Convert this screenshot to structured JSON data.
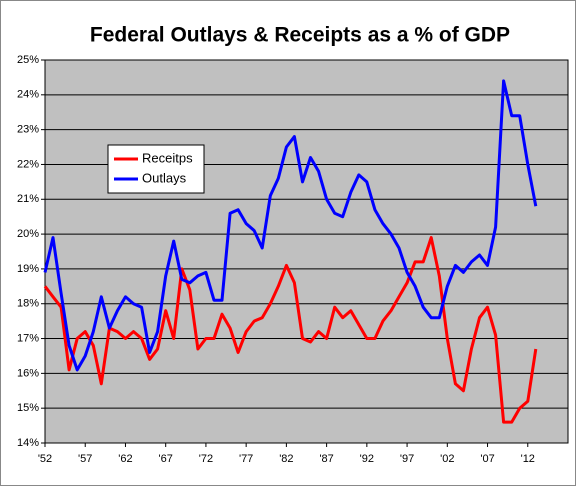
{
  "chart_data": {
    "type": "line",
    "title": "Federal Outlays & Receipts as a % of GDP",
    "x": [
      1952,
      1953,
      1954,
      1955,
      1956,
      1957,
      1958,
      1959,
      1960,
      1961,
      1962,
      1963,
      1964,
      1965,
      1966,
      1967,
      1968,
      1969,
      1970,
      1971,
      1972,
      1973,
      1974,
      1975,
      1976,
      1977,
      1978,
      1979,
      1980,
      1981,
      1982,
      1983,
      1984,
      1985,
      1986,
      1987,
      1988,
      1989,
      1990,
      1991,
      1992,
      1993,
      1994,
      1995,
      1996,
      1997,
      1998,
      1999,
      2000,
      2001,
      2002,
      2003,
      2004,
      2005,
      2006,
      2007,
      2008,
      2009,
      2010,
      2011,
      2012,
      2013
    ],
    "series": [
      {
        "name": "Receitps",
        "color": "#ff0000",
        "values": [
          18.5,
          18.2,
          17.9,
          16.1,
          17.0,
          17.2,
          16.8,
          15.7,
          17.3,
          17.2,
          17.0,
          17.2,
          17.0,
          16.4,
          16.7,
          17.8,
          17.0,
          19.0,
          18.4,
          16.7,
          17.0,
          17.0,
          17.7,
          17.3,
          16.6,
          17.2,
          17.5,
          17.6,
          18.0,
          18.5,
          19.1,
          18.6,
          17.0,
          16.9,
          17.2,
          17.0,
          17.9,
          17.6,
          17.8,
          17.4,
          17.0,
          17.0,
          17.5,
          17.8,
          18.2,
          18.6,
          19.2,
          19.2,
          19.9,
          18.8,
          17.0,
          15.7,
          15.5,
          16.7,
          17.6,
          17.9,
          17.1,
          14.6,
          14.6,
          15.0,
          15.2,
          16.7
        ]
      },
      {
        "name": "Outlays",
        "color": "#0000ff",
        "values": [
          18.9,
          19.9,
          18.3,
          16.8,
          16.1,
          16.5,
          17.2,
          18.2,
          17.3,
          17.8,
          18.2,
          18.0,
          17.9,
          16.6,
          17.2,
          18.8,
          19.8,
          18.7,
          18.6,
          18.8,
          18.9,
          18.1,
          18.1,
          20.6,
          20.7,
          20.3,
          20.1,
          19.6,
          21.1,
          21.6,
          22.5,
          22.8,
          21.5,
          22.2,
          21.8,
          21.0,
          20.6,
          20.5,
          21.2,
          21.7,
          21.5,
          20.7,
          20.3,
          20.0,
          19.6,
          18.9,
          18.5,
          17.9,
          17.6,
          17.6,
          18.5,
          19.1,
          18.9,
          19.2,
          19.4,
          19.1,
          20.2,
          24.4,
          23.4,
          23.4,
          22.0,
          20.8
        ]
      }
    ],
    "xlim": [
      1952,
      2017
    ],
    "xticks": [
      {
        "value": 1952,
        "label": "'52"
      },
      {
        "value": 1957,
        "label": "'57"
      },
      {
        "value": 1962,
        "label": "'62"
      },
      {
        "value": 1967,
        "label": "'67"
      },
      {
        "value": 1972,
        "label": "'72"
      },
      {
        "value": 1977,
        "label": "'77"
      },
      {
        "value": 1982,
        "label": "'82"
      },
      {
        "value": 1987,
        "label": "'87"
      },
      {
        "value": 1992,
        "label": "'92"
      },
      {
        "value": 1997,
        "label": "'97"
      },
      {
        "value": 2002,
        "label": "'02"
      },
      {
        "value": 2007,
        "label": "'07"
      },
      {
        "value": 2012,
        "label": "'12"
      }
    ],
    "ylim": [
      14,
      25
    ],
    "yticks": [
      {
        "value": 14,
        "label": "14%"
      },
      {
        "value": 15,
        "label": "15%"
      },
      {
        "value": 16,
        "label": "16%"
      },
      {
        "value": 17,
        "label": "17%"
      },
      {
        "value": 18,
        "label": "18%"
      },
      {
        "value": 19,
        "label": "19%"
      },
      {
        "value": 20,
        "label": "20%"
      },
      {
        "value": 21,
        "label": "21%"
      },
      {
        "value": 22,
        "label": "22%"
      },
      {
        "value": 23,
        "label": "23%"
      },
      {
        "value": 24,
        "label": "24%"
      },
      {
        "value": 25,
        "label": "25%"
      }
    ],
    "grid": true,
    "plot_background": "#c0c0c0"
  }
}
